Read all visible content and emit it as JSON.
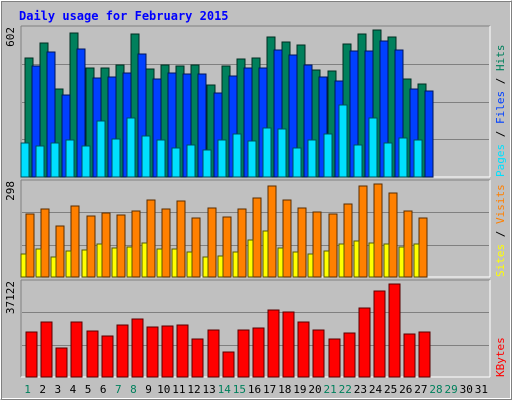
{
  "chart_data": {
    "type": "bar",
    "title": "Daily usage for February 2015",
    "background_color": "#c0c0c0",
    "grid": true,
    "days": [
      "1",
      "2",
      "3",
      "4",
      "5",
      "6",
      "7",
      "8",
      "9",
      "10",
      "11",
      "12",
      "13",
      "14",
      "15",
      "16",
      "17",
      "18",
      "19",
      "20",
      "21",
      "22",
      "23",
      "24",
      "25",
      "26",
      "27",
      "28",
      "29",
      "30",
      "31"
    ],
    "weekend_days": [
      "1",
      "7",
      "8",
      "14",
      "15",
      "21",
      "22",
      "28",
      "29"
    ],
    "colors": {
      "weekday_label": "#000000",
      "weekend_label": "#00805c",
      "hits": "#00805c",
      "files": "#0040ff",
      "pages": "#00e0ff",
      "visits": "#ff8000",
      "sites": "#ffff00",
      "kbytes": "#ff0000",
      "title": "#0000ff"
    },
    "panels": [
      {
        "max_label": "602",
        "series": [
          {
            "name": "Hits",
            "color_key": "hits",
            "values": [
              481,
              541,
              357,
              583,
              442,
              442,
              452,
              578,
              437,
              453,
              449,
              451,
              372,
              447,
              477,
              482,
              567,
              547,
              533,
              432,
              427,
              539,
              578,
              594,
              565,
              398,
              377
            ]
          },
          {
            "name": "Files",
            "color_key": "files",
            "values": [
              448,
              507,
              330,
              518,
              400,
              403,
              420,
              497,
              396,
              421,
              418,
              418,
              338,
              408,
              440,
              440,
              512,
              493,
              453,
              406,
              389,
              510,
              511,
              550,
              512,
              355,
              349
            ]
          },
          {
            "name": "Pages",
            "color_key": "pages",
            "values": [
              136,
              126,
              139,
              148,
              124,
              225,
              152,
              237,
              166,
              148,
              117,
              130,
              111,
              151,
              172,
              146,
              199,
              192,
              118,
              150,
              172,
              291,
              128,
              240,
              136,
              159,
              151
            ]
          }
        ],
        "right_labels": [
          {
            "text": "Pages",
            "color_key": "pages"
          },
          {
            "text": "Files",
            "color_key": "files"
          },
          {
            "text": "Hits",
            "color_key": "hits"
          }
        ]
      },
      {
        "max_label": "298",
        "series": [
          {
            "name": "Visits",
            "color_key": "visits",
            "values": [
              198,
              213,
              158,
              221,
              190,
              200,
              192,
              205,
              241,
              213,
              236,
              185,
              214,
              186,
              213,
              246,
              284,
              239,
              216,
              204,
              197,
              228,
              285,
              290,
              263,
              205,
              184
            ]
          },
          {
            "name": "Sites",
            "color_key": "sites",
            "values": [
              72,
              86,
              61,
              80,
              85,
              102,
              89,
              93,
              106,
              86,
              86,
              79,
              61,
              66,
              78,
              116,
              144,
              89,
              79,
              71,
              82,
              104,
              111,
              107,
              103,
              94,
              103
            ]
          }
        ],
        "right_labels": [
          {
            "text": "Sites",
            "color_key": "sites"
          },
          {
            "text": "Visits",
            "color_key": "visits"
          }
        ]
      },
      {
        "max_label": "37122",
        "series": [
          {
            "name": "KBytes",
            "color_key": "kbytes",
            "values": [
              17822,
              21786,
              11742,
              21786,
              18218,
              16238,
              20796,
              22974,
              20004,
              20400,
              20598,
              15248,
              18614,
              9960,
              18614,
              19410,
              26938,
              25948,
              21982,
              18812,
              15050,
              17426,
              27732,
              34466,
              37122,
              17228,
              18020
            ]
          }
        ],
        "right_labels": [
          {
            "text": "KBytes",
            "color_key": "kbytes"
          }
        ]
      }
    ]
  }
}
